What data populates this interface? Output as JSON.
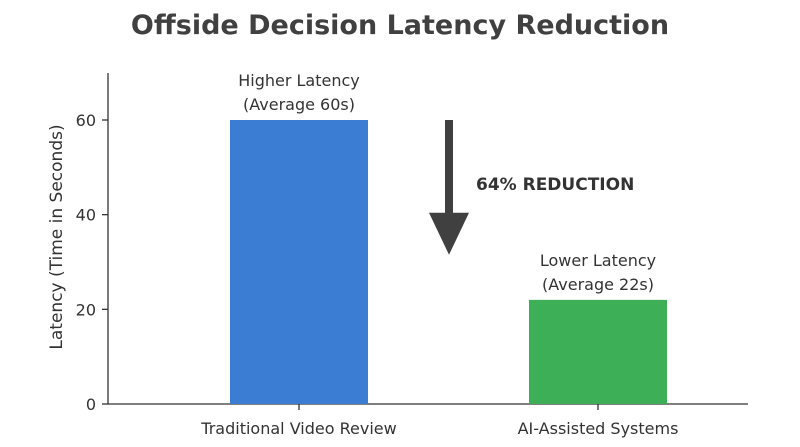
{
  "chart_data": {
    "type": "bar",
    "title": "Offside Decision Latency Reduction",
    "xlabel": "",
    "ylabel": "Latency (Time in Seconds)",
    "categories": [
      "Traditional Video Review",
      "AI-Assisted Systems"
    ],
    "values": [
      60,
      22
    ],
    "ylim": [
      0,
      70
    ],
    "yticks": [
      0,
      20,
      40,
      60
    ],
    "grid": false,
    "legend": "none",
    "colors": [
      "#3a7dd3",
      "#3daf57"
    ],
    "bar_annotations": [
      [
        "Higher Latency",
        "(Average 60s)"
      ],
      [
        "Lower Latency",
        "(Average 22s)"
      ]
    ],
    "annotation": {
      "text": "64% REDUCTION",
      "arrow_direction": "down",
      "arrow_from": 60,
      "arrow_to": 29,
      "arrow_color": "#404040"
    }
  }
}
